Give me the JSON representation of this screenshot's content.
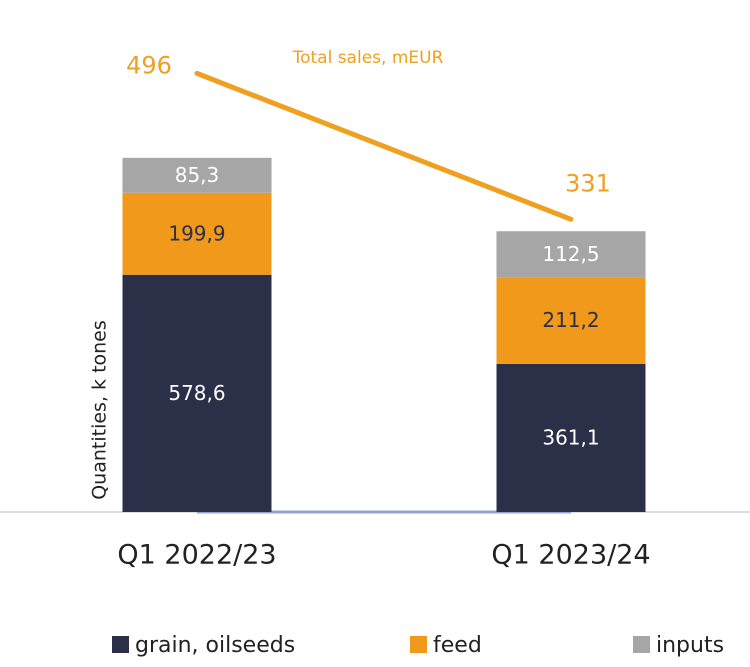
{
  "chart_data": {
    "type": "bar",
    "stacked": true,
    "categories": [
      "Q1 2022/23",
      "Q1 2023/24"
    ],
    "y_label": "Quantities, k tones",
    "ylim": [
      0,
      1100
    ],
    "y2lim": [
      0,
      510
    ],
    "series": [
      {
        "name": "grain, oilseeds",
        "color": "#2b2f48",
        "values": [
          578.6,
          361.1
        ],
        "value_labels": [
          "578,6",
          "361,1"
        ]
      },
      {
        "name": "feed",
        "color": "#f0991a",
        "values": [
          199.9,
          211.2
        ],
        "value_labels": [
          "199,9",
          "211,2"
        ]
      },
      {
        "name": "inputs",
        "color": "#a6a6a6",
        "values": [
          85.3,
          112.5
        ],
        "value_labels": [
          "85,3",
          "112,5"
        ]
      },
      {
        "name": "Total sales, mEUR",
        "type": "line",
        "axis": "y2",
        "color": "#f0a020",
        "values": [
          496,
          331
        ]
      }
    ]
  }
}
